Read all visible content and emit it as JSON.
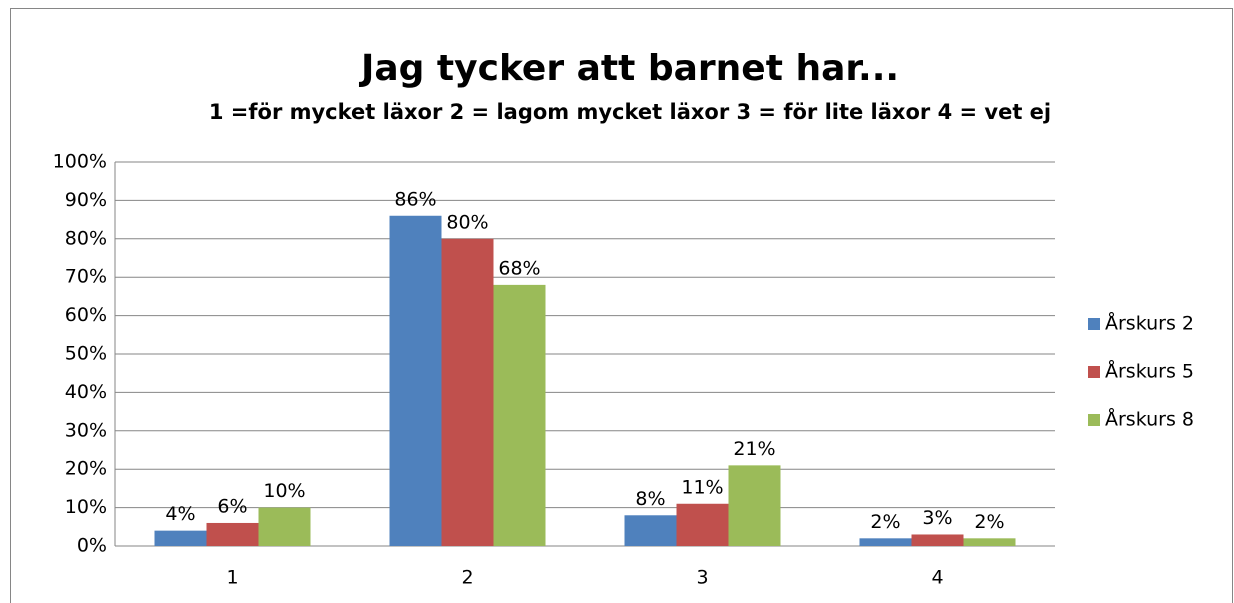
{
  "chart_data": {
    "type": "bar",
    "title": "Jag tycker att barnet har...",
    "subtitle": "1 =för mycket läxor  2 = lagom mycket läxor  3 = för lite läxor  4  = vet ej",
    "categories": [
      "1",
      "2",
      "3",
      "4"
    ],
    "series": [
      {
        "name": "Årskurs 2",
        "color": "#4f81bd",
        "values": [
          4,
          86,
          8,
          2
        ],
        "value_labels": [
          "4%",
          "86%",
          "8%",
          "2%"
        ]
      },
      {
        "name": "Årskurs 5",
        "color": "#c0504d",
        "values": [
          6,
          80,
          11,
          3
        ],
        "value_labels": [
          "6%",
          "80%",
          "11%",
          "3%"
        ]
      },
      {
        "name": "Årskurs 8",
        "color": "#9bbb59",
        "values": [
          10,
          68,
          21,
          2
        ],
        "value_labels": [
          "10%",
          "68%",
          "21%",
          "2%"
        ]
      }
    ],
    "ylim": [
      0,
      100
    ],
    "yticks": [
      {
        "value": 0,
        "label": "0%"
      },
      {
        "value": 10,
        "label": "10%"
      },
      {
        "value": 20,
        "label": "20%"
      },
      {
        "value": 30,
        "label": "30%"
      },
      {
        "value": 40,
        "label": "40%"
      },
      {
        "value": 50,
        "label": "50%"
      },
      {
        "value": 60,
        "label": "60%"
      },
      {
        "value": 70,
        "label": "70%"
      },
      {
        "value": 80,
        "label": "80%"
      },
      {
        "value": 90,
        "label": "90%"
      },
      {
        "value": 100,
        "label": "100%"
      }
    ],
    "grid": true,
    "legend": "right"
  }
}
